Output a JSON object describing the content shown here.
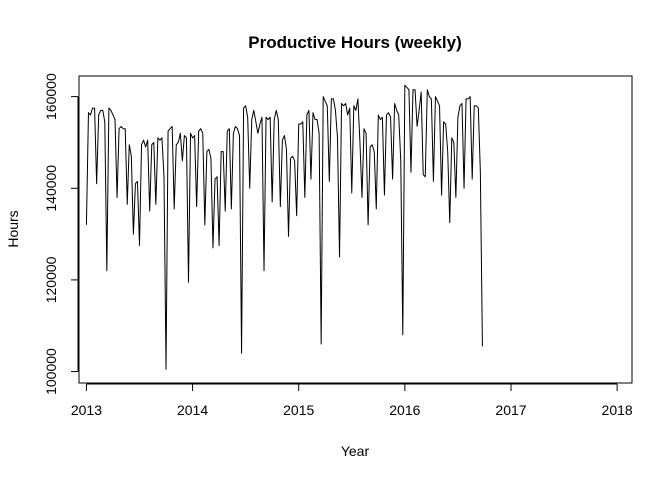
{
  "chart_data": {
    "type": "line",
    "title": "Productive Hours (weekly)",
    "xlabel": "Year",
    "ylabel": "Hours",
    "xlim": [
      2012.93,
      2018.14
    ],
    "ylim": [
      97500,
      164500
    ],
    "x_ticks": [
      2013,
      2014,
      2015,
      2016,
      2017,
      2018
    ],
    "x_tick_labels": [
      "2013",
      "2014",
      "2015",
      "2016",
      "2017",
      "2018"
    ],
    "y_ticks": [
      100000,
      120000,
      140000,
      160000
    ],
    "y_tick_labels": [
      "100000",
      "120000",
      "140000",
      "160000"
    ],
    "grid": false,
    "series": [
      {
        "color": "#000000",
        "x_start": 2013,
        "x_step": 0.01923,
        "values": [
          132000,
          156500,
          156000,
          157500,
          157500,
          141000,
          156000,
          157000,
          157000,
          154500,
          122000,
          157500,
          157000,
          156000,
          155000,
          138000,
          153000,
          153500,
          153000,
          153000,
          136500,
          149500,
          147000,
          130000,
          141000,
          141500,
          127500,
          149500,
          150500,
          149000,
          150500,
          135000,
          149500,
          150000,
          136500,
          151000,
          150500,
          151000,
          142500,
          100500,
          152500,
          153000,
          153500,
          135500,
          149500,
          150000,
          152000,
          146000,
          151500,
          151000,
          119500,
          152000,
          151000,
          151500,
          136000,
          152500,
          153000,
          152000,
          132000,
          148000,
          148500,
          146500,
          127000,
          142000,
          142500,
          127500,
          148000,
          148000,
          135000,
          152500,
          153000,
          135500,
          152000,
          153500,
          153000,
          151500,
          104000,
          157500,
          158000,
          155500,
          140000,
          155000,
          157000,
          154500,
          152000,
          154000,
          155500,
          122000,
          155500,
          155000,
          155500,
          137000,
          155000,
          157000,
          155000,
          136000,
          150500,
          151500,
          148500,
          129500,
          146500,
          147000,
          146000,
          134000,
          154000,
          154000,
          154500,
          138000,
          156000,
          157000,
          142000,
          156500,
          155000,
          155000,
          152000,
          106000,
          160000,
          159000,
          158000,
          141500,
          159500,
          159500,
          157000,
          151000,
          125000,
          158500,
          158000,
          158500,
          156000,
          157500,
          139000,
          158000,
          157000,
          159500,
          150000,
          138000,
          153000,
          152000,
          132000,
          149000,
          149500,
          148000,
          135500,
          156000,
          155000,
          155500,
          138500,
          156000,
          156500,
          155500,
          142000,
          158500,
          157000,
          156000,
          146000,
          108000,
          162500,
          162000,
          161500,
          143500,
          161500,
          161500,
          153500,
          157000,
          161000,
          143000,
          142500,
          161500,
          160000,
          159500,
          141500,
          160000,
          159000,
          158000,
          138500,
          154500,
          154000,
          148000,
          132500,
          151000,
          150000,
          138000,
          155500,
          158000,
          158500,
          140000,
          159500,
          159500,
          160000,
          142000,
          158000,
          158000,
          157500,
          143500,
          105500
        ]
      }
    ]
  }
}
